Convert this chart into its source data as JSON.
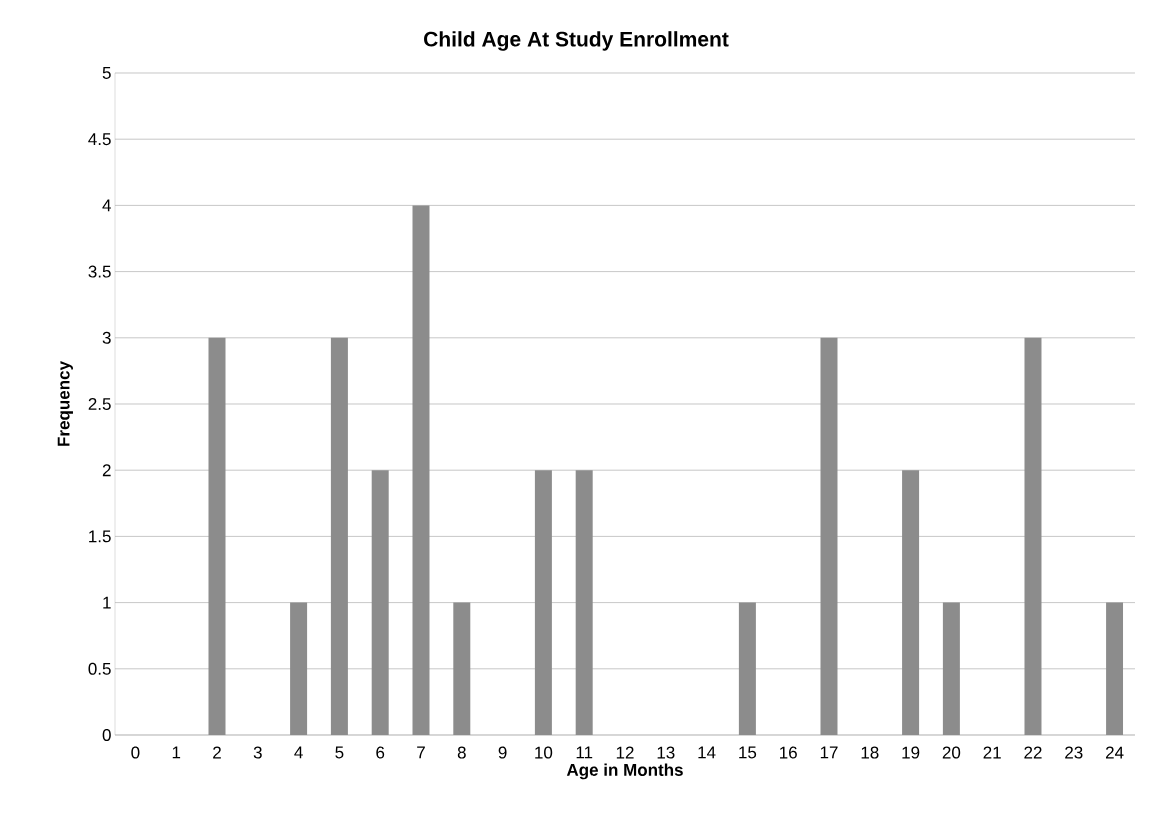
{
  "chart_data": {
    "type": "bar",
    "title": "Child Age At Study Enrollment",
    "xlabel": "Age in Months",
    "ylabel": "Frequency",
    "categories": [
      "0",
      "1",
      "2",
      "3",
      "4",
      "5",
      "6",
      "7",
      "8",
      "9",
      "10",
      "11",
      "12",
      "13",
      "14",
      "15",
      "16",
      "17",
      "18",
      "19",
      "20",
      "21",
      "22",
      "23",
      "24"
    ],
    "values": [
      0,
      0,
      3,
      0,
      1,
      3,
      2,
      4,
      1,
      0,
      2,
      2,
      0,
      0,
      0,
      1,
      0,
      3,
      0,
      2,
      1,
      0,
      3,
      0,
      1
    ],
    "color": "#8c8c8c",
    "ylim": [
      0,
      5
    ],
    "yticks": [
      0,
      0.5,
      1,
      1.5,
      2,
      2.5,
      3,
      3.5,
      4,
      4.5,
      5
    ],
    "grid": "y"
  }
}
